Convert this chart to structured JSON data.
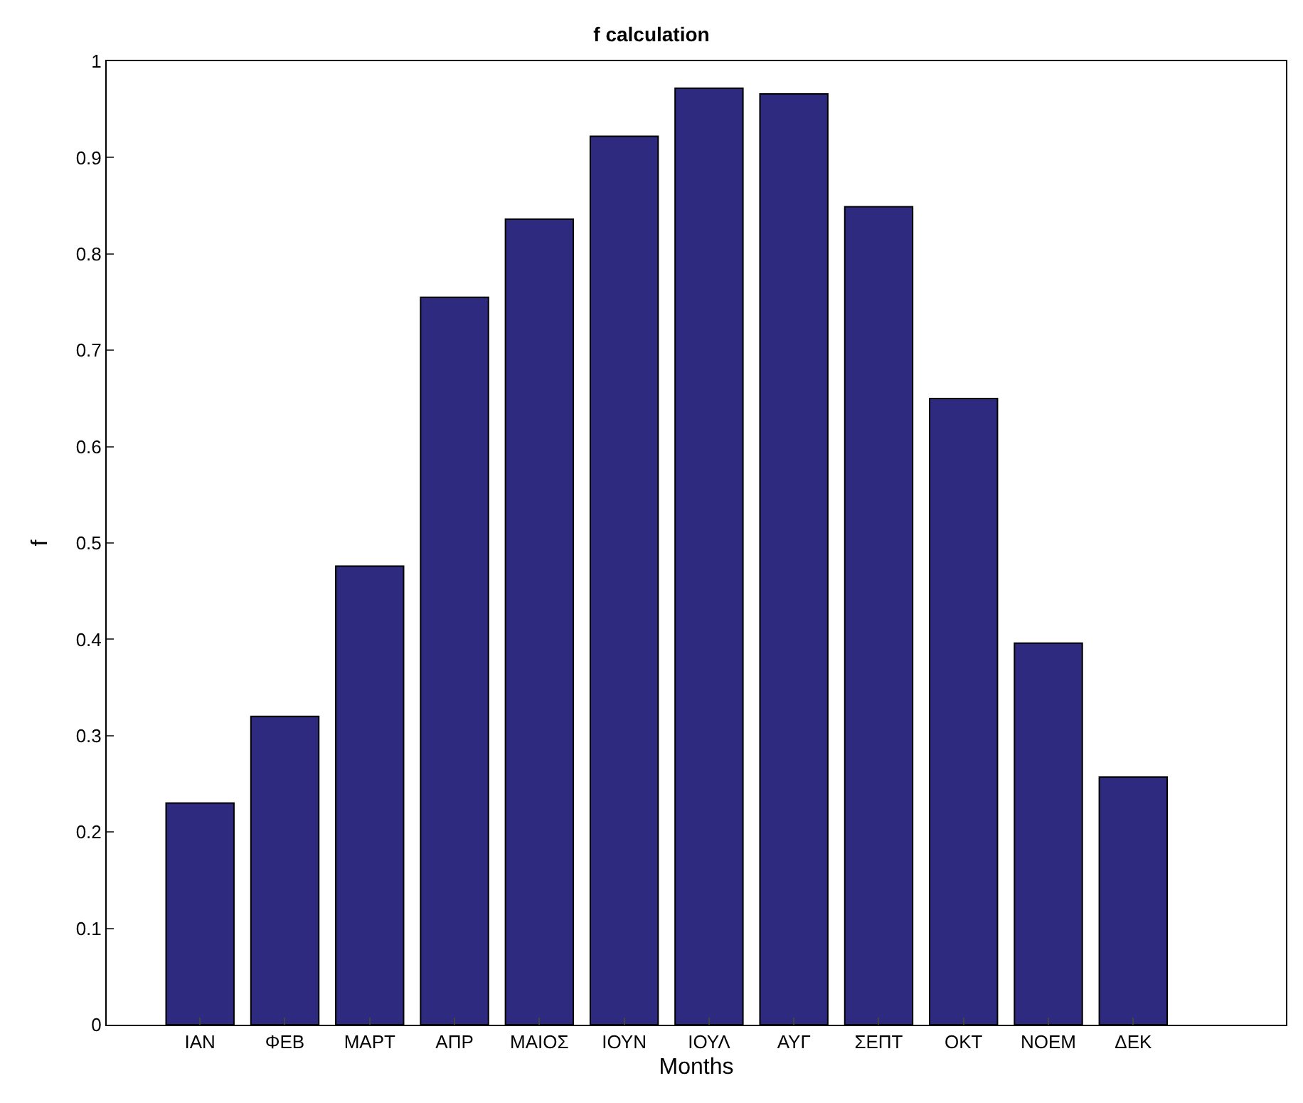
{
  "chart_data": {
    "type": "bar",
    "title": "f calculation",
    "xlabel": "Months",
    "ylabel": "f",
    "categories": [
      "ΙΑΝ",
      "ΦΕΒ",
      "ΜΑΡΤ",
      "ΑΠΡ",
      "ΜΑΙΟΣ",
      "ΙΟΥΝ",
      "ΙΟΥΛ",
      "ΑΥΓ",
      "ΣΕΠΤ",
      "ΟΚΤ",
      "ΝΟΕΜ",
      "ΔΕΚ"
    ],
    "values": [
      0.23,
      0.32,
      0.476,
      0.755,
      0.836,
      0.922,
      0.972,
      0.966,
      0.849,
      0.65,
      0.396,
      0.257
    ],
    "color": "#2e2a80",
    "ylim": [
      0,
      1
    ],
    "yticks": [
      0,
      0.1,
      0.2,
      0.3,
      0.4,
      0.5,
      0.6,
      0.7,
      0.8,
      0.9,
      1
    ]
  }
}
